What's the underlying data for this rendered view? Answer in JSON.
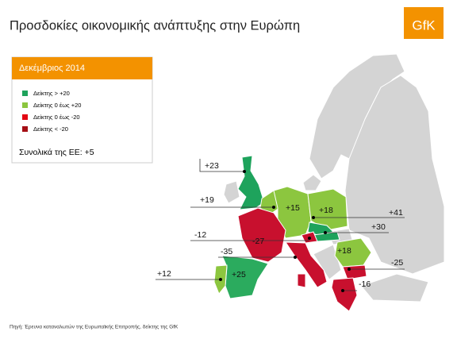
{
  "header": {
    "title": "Προσδοκίες οικονομικής ανάπτυξης στην Ευρώπη",
    "logo": "GfK"
  },
  "legend": {
    "title": "Δεκέμβριος 2014",
    "items": [
      "Δείκτης > +20",
      "Δείκτης 0 έως +20",
      "Δείκτης 0 έως -20",
      "Δείκτης < -20"
    ],
    "total": "Συνολικά της ΕΕ: +5"
  },
  "map": {
    "labels": [
      "+23",
      "+19",
      "+15",
      "+18",
      "+41",
      "+30",
      "-12",
      "-27",
      "-35",
      "+25",
      "+12",
      "+18",
      "-25",
      "-16"
    ]
  },
  "footer": {
    "source": "Πηγή: Έρευνα καταναλωτών της Ευρωπαϊκής Επιτροπής, δείκτης της GfK"
  }
}
